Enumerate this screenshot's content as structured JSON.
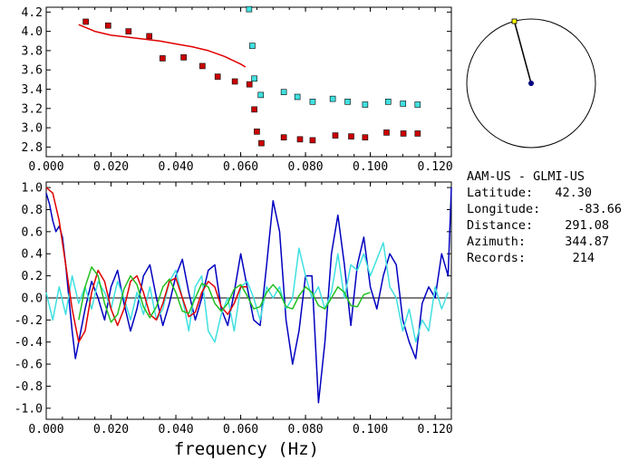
{
  "info": {
    "station_pair": "AAM-US - GLMI-US",
    "latitude_label": "Latitude:",
    "latitude_value": "42.30",
    "longitude_label": "Longitude:",
    "longitude_value": "-83.66",
    "distance_label": "Distance:",
    "distance_value": "291.08",
    "azimuth_label": "Azimuth:",
    "azimuth_value": "344.87",
    "records_label": "Records:",
    "records_value": "214"
  },
  "compass": {
    "azimuth_deg": 344.87,
    "ring_color": "#000000",
    "needle_tip_color": "#ffff00",
    "center_color": "#000080"
  },
  "colors": {
    "red": "#e00000",
    "cyan": "#40e0e0",
    "blue": "#0000c0",
    "green": "#20c020",
    "dark_red": "#cc0000"
  },
  "chart_data": [
    {
      "type": "scatter",
      "title": "",
      "xlabel": "",
      "ylabel": "",
      "xlim": [
        0.0,
        0.125
      ],
      "ylim": [
        2.7,
        4.25
      ],
      "x_ticks": [
        "0.000",
        "0.020",
        "0.040",
        "0.060",
        "0.080",
        "0.100",
        "0.120"
      ],
      "y_ticks": [
        "4.2",
        "4.0",
        "3.8",
        "3.6",
        "3.4",
        "3.2",
        "3.0",
        "2.8"
      ],
      "series": [
        {
          "kind": "points",
          "color": "#cc0000",
          "x": [
            0.0122,
            0.0191,
            0.0254,
            0.0318,
            0.0359,
            0.0424,
            0.0482,
            0.0529,
            0.0582,
            0.0627,
            0.0642,
            0.065,
            0.0664,
            0.0733,
            0.0783,
            0.0822,
            0.0892,
            0.0941,
            0.0984,
            0.105,
            0.1102,
            0.1146
          ],
          "y": [
            4.1,
            4.06,
            4.0,
            3.95,
            3.72,
            3.73,
            3.64,
            3.53,
            3.48,
            3.45,
            3.19,
            2.96,
            2.84,
            2.9,
            2.88,
            2.87,
            2.92,
            2.91,
            2.9,
            2.95,
            2.94,
            2.94
          ]
        },
        {
          "kind": "points",
          "color": "#40e0e0",
          "x": [
            0.0626,
            0.0636,
            0.0642,
            0.0662,
            0.0733,
            0.0775,
            0.0822,
            0.0884,
            0.093,
            0.0984,
            0.1055,
            0.1101,
            0.1146
          ],
          "y": [
            4.23,
            3.85,
            3.51,
            3.34,
            3.37,
            3.32,
            3.27,
            3.3,
            3.27,
            3.24,
            3.27,
            3.25,
            3.24
          ]
        },
        {
          "kind": "line",
          "color": "#e00000",
          "x": [
            0.01,
            0.015,
            0.02,
            0.025,
            0.03,
            0.035,
            0.04,
            0.045,
            0.05,
            0.055,
            0.06,
            0.0615
          ],
          "y": [
            4.07,
            4.0,
            3.96,
            3.94,
            3.92,
            3.9,
            3.87,
            3.84,
            3.8,
            3.74,
            3.66,
            3.63
          ]
        }
      ]
    },
    {
      "type": "line",
      "title": "",
      "xlabel": "frequency (Hz)",
      "ylabel": "",
      "xlim": [
        0.0,
        0.125
      ],
      "ylim": [
        -1.1,
        1.05
      ],
      "x_ticks": [
        "0.000",
        "0.020",
        "0.040",
        "0.060",
        "0.080",
        "0.100",
        "0.120"
      ],
      "y_ticks": [
        "1.0",
        "0.8",
        "0.6",
        "0.4",
        "0.2",
        "0.0",
        "-0.2",
        "-0.4",
        "-0.6",
        "-0.8",
        "-1.0"
      ],
      "series": [
        {
          "kind": "line",
          "color": "#0000c0",
          "x": [
            0.0,
            0.001,
            0.002,
            0.003,
            0.004,
            0.005,
            0.006,
            0.007,
            0.008,
            0.009,
            0.01,
            0.012,
            0.014,
            0.016,
            0.018,
            0.02,
            0.022,
            0.024,
            0.026,
            0.028,
            0.03,
            0.032,
            0.034,
            0.036,
            0.038,
            0.04,
            0.042,
            0.044,
            0.046,
            0.048,
            0.05,
            0.052,
            0.054,
            0.056,
            0.058,
            0.06,
            0.062,
            0.064,
            0.066,
            0.068,
            0.07,
            0.072,
            0.074,
            0.076,
            0.078,
            0.08,
            0.082,
            0.084,
            0.086,
            0.088,
            0.09,
            0.092,
            0.094,
            0.096,
            0.098,
            0.1,
            0.102,
            0.104,
            0.106,
            0.108,
            0.11,
            0.112,
            0.114,
            0.116,
            0.118,
            0.12,
            0.122,
            0.124,
            0.125
          ],
          "y": [
            0.95,
            0.85,
            0.7,
            0.6,
            0.65,
            0.55,
            0.3,
            0.0,
            -0.3,
            -0.55,
            -0.4,
            -0.1,
            0.15,
            0.0,
            -0.2,
            0.1,
            0.25,
            -0.05,
            -0.3,
            -0.1,
            0.2,
            0.3,
            0.0,
            -0.25,
            -0.05,
            0.2,
            0.35,
            0.05,
            -0.2,
            0.0,
            0.25,
            0.3,
            -0.1,
            -0.25,
            0.05,
            0.4,
            0.1,
            -0.2,
            -0.25,
            0.3,
            0.88,
            0.6,
            -0.2,
            -0.6,
            -0.3,
            0.2,
            0.2,
            -0.95,
            -0.4,
            0.4,
            0.75,
            0.3,
            -0.25,
            0.3,
            0.55,
            0.1,
            -0.1,
            0.2,
            0.4,
            0.3,
            -0.2,
            -0.4,
            -0.55,
            -0.05,
            0.1,
            0.0,
            0.4,
            0.2,
            1.0
          ]
        },
        {
          "kind": "line",
          "color": "#40e0e0",
          "x": [
            0.0,
            0.002,
            0.004,
            0.006,
            0.008,
            0.01,
            0.012,
            0.014,
            0.016,
            0.018,
            0.02,
            0.022,
            0.024,
            0.026,
            0.028,
            0.03,
            0.032,
            0.034,
            0.036,
            0.038,
            0.04,
            0.042,
            0.044,
            0.046,
            0.048,
            0.05,
            0.052,
            0.054,
            0.056,
            0.058,
            0.06,
            0.062,
            0.064,
            0.066,
            0.068,
            0.07,
            0.072,
            0.074,
            0.076,
            0.078,
            0.08,
            0.082,
            0.084,
            0.086,
            0.088,
            0.09,
            0.092,
            0.094,
            0.096,
            0.098,
            0.1,
            0.102,
            0.104,
            0.106,
            0.108,
            0.11,
            0.112,
            0.114,
            0.116,
            0.118,
            0.12,
            0.122,
            0.124
          ],
          "y": [
            0.05,
            -0.2,
            0.1,
            -0.15,
            0.2,
            -0.05,
            0.1,
            -0.1,
            0.15,
            0.05,
            -0.1,
            0.15,
            0.0,
            -0.2,
            0.05,
            -0.15,
            0.1,
            -0.2,
            -0.1,
            0.15,
            0.25,
            0.0,
            -0.3,
            0.1,
            0.2,
            -0.3,
            -0.4,
            -0.15,
            0.0,
            -0.3,
            0.1,
            0.15,
            0.0,
            -0.2,
            0.1,
            0.0,
            0.1,
            -0.1,
            0.0,
            0.45,
            0.2,
            0.0,
            0.1,
            -0.1,
            0.05,
            0.4,
            0.0,
            0.3,
            0.25,
            0.4,
            0.2,
            0.35,
            0.5,
            0.1,
            0.0,
            -0.3,
            -0.1,
            -0.4,
            -0.2,
            -0.3,
            0.1,
            -0.1,
            0.05
          ]
        },
        {
          "kind": "line",
          "color": "#e00000",
          "x": [
            0.0,
            0.002,
            0.004,
            0.006,
            0.008,
            0.01,
            0.012,
            0.014,
            0.016,
            0.018,
            0.02,
            0.022,
            0.024,
            0.026,
            0.028,
            0.03,
            0.032,
            0.034,
            0.036,
            0.038,
            0.04,
            0.042,
            0.044,
            0.046,
            0.048,
            0.05,
            0.052,
            0.054,
            0.056,
            0.058,
            0.06,
            0.062
          ],
          "y": [
            1.0,
            0.95,
            0.7,
            0.3,
            -0.1,
            -0.4,
            -0.3,
            0.05,
            0.25,
            0.15,
            -0.1,
            -0.25,
            -0.1,
            0.15,
            0.2,
            0.05,
            -0.15,
            -0.2,
            -0.05,
            0.15,
            0.18,
            0.0,
            -0.17,
            -0.13,
            0.05,
            0.15,
            0.1,
            -0.08,
            -0.15,
            -0.05,
            0.1,
            0.1
          ]
        },
        {
          "kind": "line",
          "color": "#20c020",
          "x": [
            0.01,
            0.012,
            0.014,
            0.016,
            0.018,
            0.02,
            0.022,
            0.024,
            0.026,
            0.028,
            0.03,
            0.032,
            0.034,
            0.036,
            0.038,
            0.04,
            0.042,
            0.044,
            0.046,
            0.048,
            0.05,
            0.052,
            0.054,
            0.056,
            0.058,
            0.06,
            0.062,
            0.064,
            0.066,
            0.068,
            0.07,
            0.072,
            0.074,
            0.076,
            0.078,
            0.08,
            0.082,
            0.084,
            0.086,
            0.088,
            0.09,
            0.092,
            0.094,
            0.096,
            0.098,
            0.1
          ],
          "y": [
            -0.2,
            0.1,
            0.28,
            0.2,
            -0.05,
            -0.22,
            -0.15,
            0.08,
            0.2,
            0.12,
            -0.08,
            -0.18,
            -0.08,
            0.1,
            0.17,
            0.05,
            -0.12,
            -0.14,
            0.0,
            0.13,
            0.1,
            -0.05,
            -0.12,
            -0.05,
            0.08,
            0.12,
            0.02,
            -0.1,
            -0.08,
            0.05,
            0.12,
            0.05,
            -0.08,
            -0.1,
            0.02,
            0.1,
            0.05,
            -0.07,
            -0.1,
            0.0,
            0.1,
            0.05,
            -0.07,
            -0.08,
            0.03,
            0.05
          ]
        }
      ]
    }
  ]
}
